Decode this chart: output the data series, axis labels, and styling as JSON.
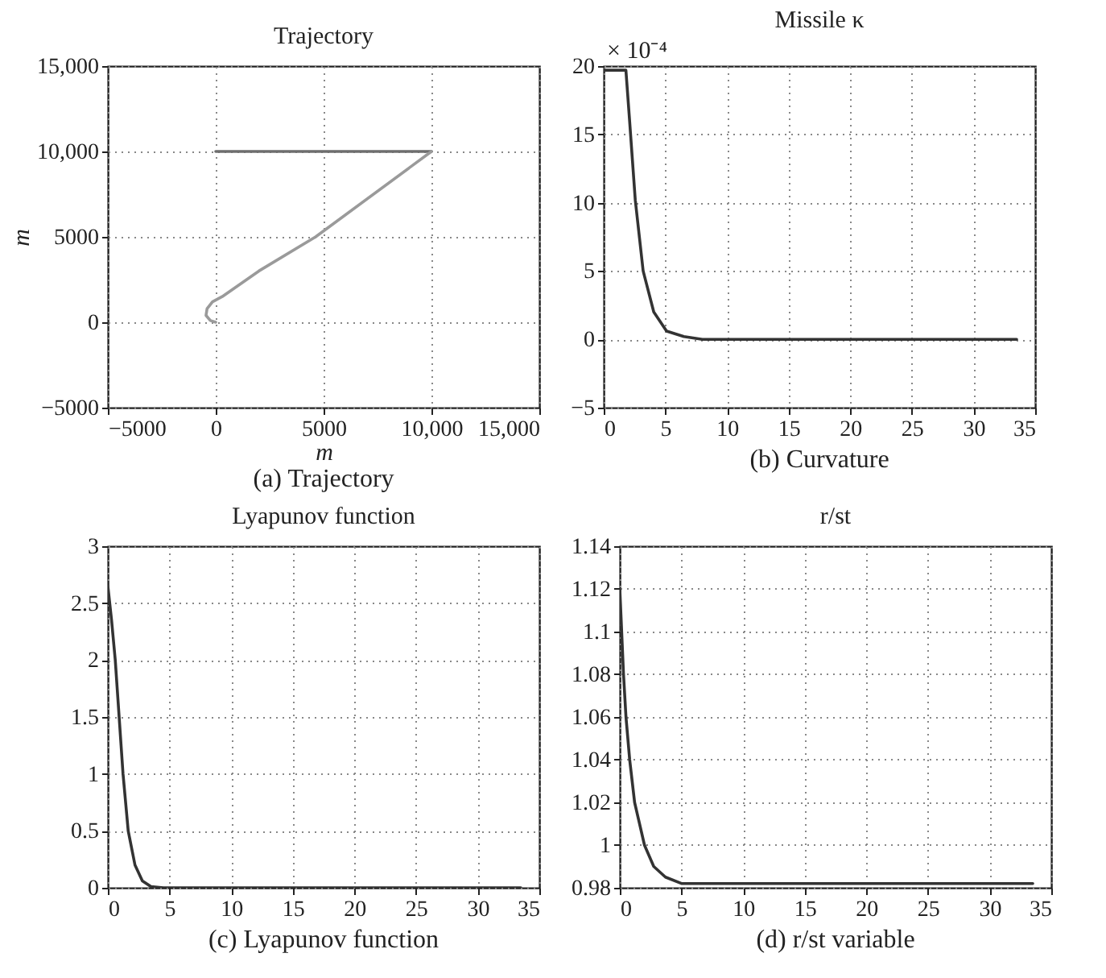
{
  "chart_data": [
    {
      "type": "line",
      "title": "Trajectory",
      "xlabel": "m",
      "ylabel": "m",
      "annotations": [
        "(a) Trajectory"
      ],
      "grid": true,
      "xlim": [
        -5000,
        15000
      ],
      "xticks": [
        -5000,
        0,
        5000,
        {
          "value": 10000,
          "label": "10,000"
        },
        {
          "value": 15000,
          "label": "15,000"
        }
      ],
      "ylim": [
        -5000,
        15000
      ],
      "yticks": [
        -5000,
        0,
        5000,
        {
          "value": 10000,
          "label": "10,000"
        },
        {
          "value": 15000,
          "label": "15,000"
        }
      ],
      "series": [
        {
          "color": "#6e6e6e",
          "x": [
            0,
            10000
          ],
          "values": [
            10000,
            10000
          ]
        },
        {
          "color": "#9a9a9a",
          "x": [
            0,
            -250,
            -450,
            -400,
            -150,
            300,
            2000,
            4630,
            10000
          ],
          "values": [
            0,
            100,
            400,
            800,
            1200,
            1500,
            3000,
            5000,
            10000
          ]
        }
      ]
    },
    {
      "type": "line",
      "title": "Missile κ",
      "annotations": [
        "× 10⁻⁴",
        "(b) Curvature"
      ],
      "grid": true,
      "xlim": [
        0,
        35
      ],
      "xticks": [
        0,
        5,
        10,
        15,
        20,
        25,
        30,
        35
      ],
      "ylim": [
        -5,
        20
      ],
      "yticks": [
        -5,
        0,
        5,
        10,
        15,
        20
      ],
      "series": [
        {
          "color": "#333333",
          "x": [
            0,
            1.8,
            2.1,
            2.56,
            3.2,
            4.06,
            5.1,
            6.5,
            8,
            33.5
          ],
          "values": [
            19.7,
            19.7,
            16,
            10.2,
            5,
            2,
            0.6,
            0.2,
            0,
            0
          ]
        }
      ]
    },
    {
      "type": "line",
      "title": "Lyapunov function",
      "annotations": [
        "(c) Lyapunov function"
      ],
      "grid": true,
      "xlim": [
        0,
        35
      ],
      "xticks": [
        0,
        5,
        10,
        15,
        20,
        25,
        30,
        35
      ],
      "ylim": [
        0,
        3
      ],
      "yticks": [
        0,
        0.5,
        1,
        1.5,
        2,
        2.5,
        3
      ],
      "series": [
        {
          "color": "#333333",
          "x": [
            0,
            0.3,
            0.6,
            1.23,
            1.65,
            2.2,
            2.8,
            3.5,
            4.5,
            33.5
          ],
          "values": [
            2.65,
            2.35,
            2,
            1,
            0.5,
            0.2,
            0.06,
            0.01,
            0,
            0
          ]
        }
      ]
    },
    {
      "type": "line",
      "title": "r/st",
      "annotations": [
        "(d) r/st variable"
      ],
      "grid": true,
      "xlim": [
        0,
        35
      ],
      "xticks": [
        0,
        5,
        10,
        15,
        20,
        25,
        30,
        35
      ],
      "ylim": [
        0.98,
        1.14
      ],
      "yticks": [
        0.98,
        1,
        1.02,
        1.04,
        1.06,
        1.08,
        1.1,
        1.12,
        1.14
      ],
      "series": [
        {
          "color": "#333333",
          "x": [
            0,
            0.3,
            0.5,
            0.8,
            1.2,
            2,
            2.75,
            3.7,
            5,
            33.5
          ],
          "values": [
            1.12,
            1.08,
            1.06,
            1.04,
            1.02,
            1,
            0.99,
            0.985,
            0.982,
            0.982
          ]
        }
      ]
    }
  ]
}
